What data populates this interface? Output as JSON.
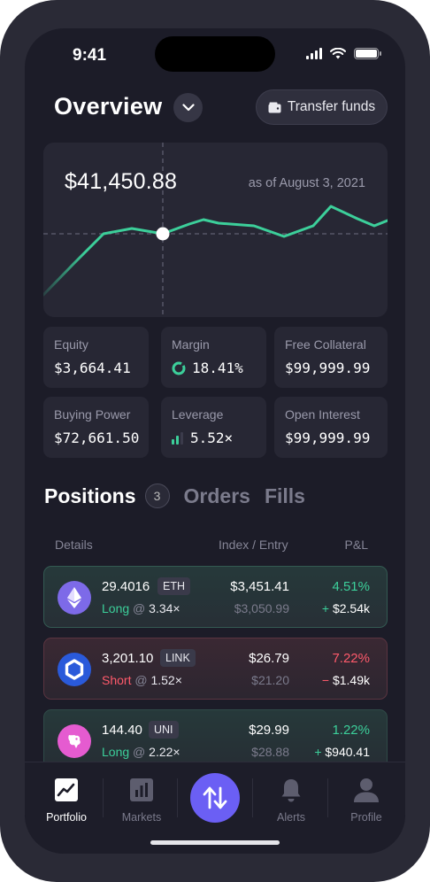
{
  "status": {
    "time": "9:41"
  },
  "header": {
    "title": "Overview",
    "transfer_label": "Transfer funds"
  },
  "overview": {
    "value": "$41,450.88",
    "as_of": "as of August 3, 2021"
  },
  "stats": [
    {
      "label": "Equity",
      "value": "$3,664.41"
    },
    {
      "label": "Margin",
      "value": "18.41%"
    },
    {
      "label": "Free Collateral",
      "value": "$99,999.99"
    },
    {
      "label": "Buying Power",
      "value": "$72,661.50"
    },
    {
      "label": "Leverage",
      "value": "5.52×"
    },
    {
      "label": "Open Interest",
      "value": "$99,999.99"
    }
  ],
  "tabs": {
    "positions": "Positions",
    "positions_count": "3",
    "orders": "Orders",
    "fills": "Fills"
  },
  "table": {
    "col_details": "Details",
    "col_index": "Index / Entry",
    "col_pnl": "P&L"
  },
  "positions": [
    {
      "size": "29.4016",
      "asset": "ETH",
      "side": "Long",
      "at": "@",
      "leverage": "3.34×",
      "index": "$3,451.41",
      "entry": "$3,050.99",
      "pct": "4.51%",
      "pnl_sign": "+",
      "pnl": "$2.54k"
    },
    {
      "size": "3,201.10",
      "asset": "LINK",
      "side": "Short",
      "at": "@",
      "leverage": "1.52×",
      "index": "$26.79",
      "entry": "$21.20",
      "pct": "7.22%",
      "pnl_sign": "−",
      "pnl": "$1.49k"
    },
    {
      "size": "144.40",
      "asset": "UNI",
      "side": "Long",
      "at": "@",
      "leverage": "2.22×",
      "index": "$29.99",
      "entry": "$28.88",
      "pct": "1.22%",
      "pnl_sign": "+",
      "pnl": "$940.41"
    }
  ],
  "nav": {
    "portfolio": "Portfolio",
    "markets": "Markets",
    "alerts": "Alerts",
    "profile": "Profile"
  },
  "icons": {
    "dropdown": "chevron-down-icon",
    "wallet": "wallet-icon",
    "eth": "ethereum-icon",
    "link": "chainlink-icon",
    "uni": "uniswap-icon",
    "portfolio": "chart-line-icon",
    "markets": "bar-chart-icon",
    "trade": "swap-arrows-icon",
    "alerts": "bell-icon",
    "profile": "user-icon"
  },
  "colors": {
    "positive": "#3ccf9a",
    "negative": "#ff5a6b",
    "accent": "#6b5ff4",
    "chart_line": "#3ccf9a"
  }
}
